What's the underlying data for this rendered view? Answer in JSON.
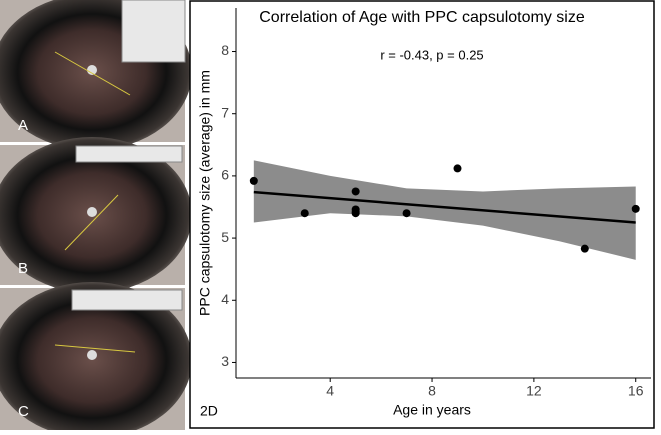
{
  "panel_labels": [
    "A",
    "B",
    "C"
  ],
  "chart_data": {
    "type": "scatter",
    "title": "Correlation of Age with PPC capsulotomy size",
    "annotation": "r = -0.43, p = 0.25",
    "panel_label": "2D",
    "x_label": "Age in years",
    "y_label": "PPC capsulotomy size (average) in mm",
    "x": [
      1,
      3,
      5,
      5,
      5,
      5,
      7,
      9,
      14,
      16
    ],
    "values": [
      5.92,
      5.4,
      5.75,
      5.46,
      5.42,
      5.4,
      5.4,
      6.12,
      4.83,
      5.47
    ],
    "color": "#000000",
    "fit": {
      "x": [
        1,
        16
      ],
      "y": [
        5.74,
        5.25
      ],
      "color": "#000000"
    },
    "band": {
      "x": [
        1,
        4,
        7,
        10,
        13,
        16
      ],
      "lower": [
        5.25,
        5.4,
        5.35,
        5.2,
        4.95,
        4.65
      ],
      "upper": [
        6.25,
        6.0,
        5.8,
        5.75,
        5.8,
        5.83
      ],
      "color": "#8c8c8c"
    },
    "xlim": [
      0.3,
      16.6
    ],
    "ylim": [
      2.75,
      8.7
    ],
    "xticks": [
      4,
      8,
      12,
      16
    ],
    "yticks": [
      3,
      4,
      5,
      6,
      7,
      8
    ],
    "grid": false
  }
}
